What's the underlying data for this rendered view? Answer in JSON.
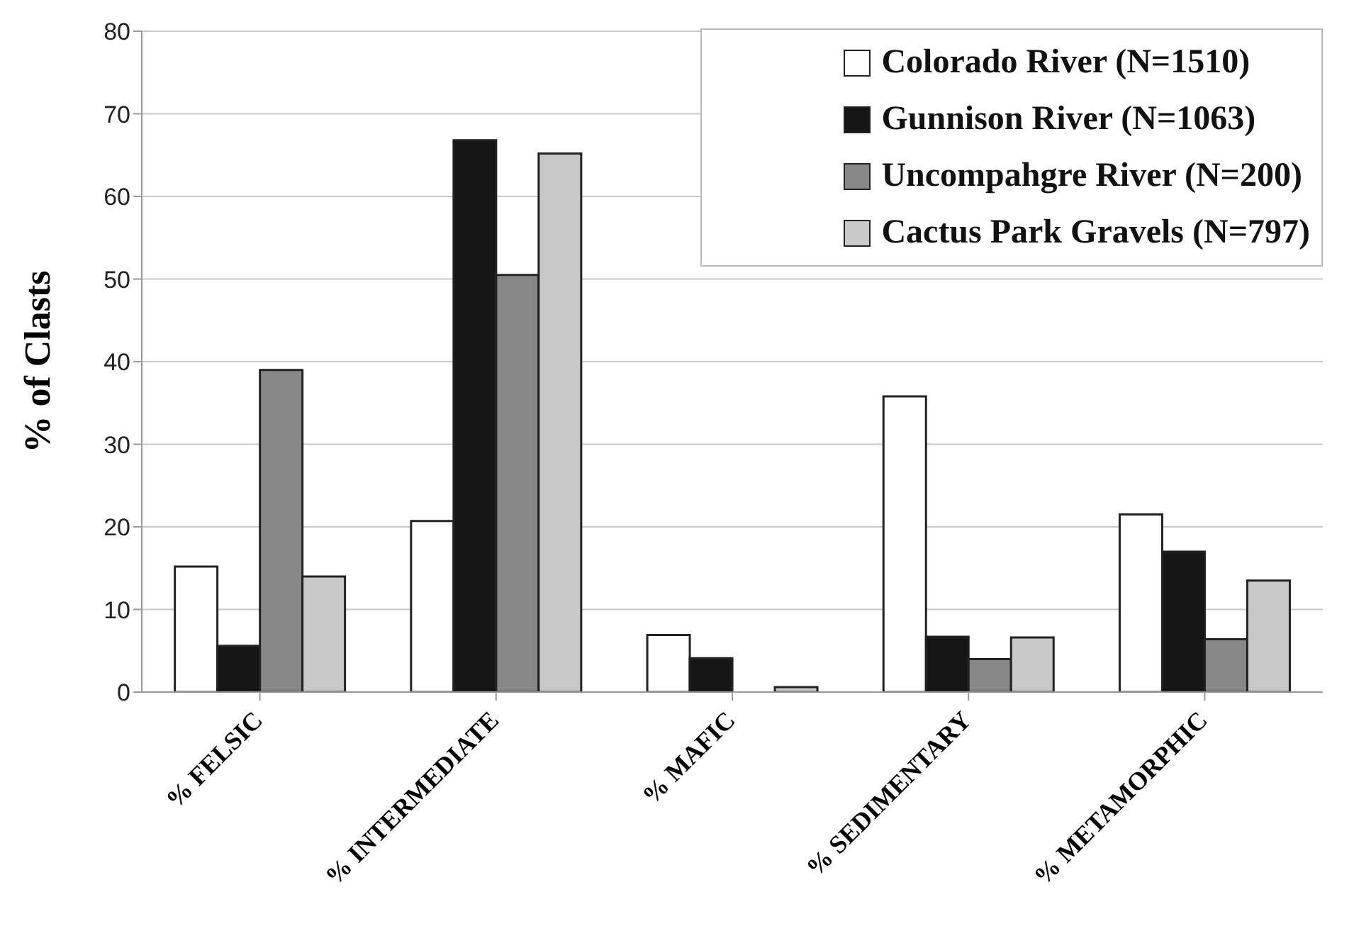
{
  "chart_data": {
    "type": "bar",
    "ylabel": "% of Clasts",
    "categories": [
      "% FELSIC",
      "% INTERMEDIATE",
      "% MAFIC",
      "% SEDIMENTARY",
      "% METAMORPHIC"
    ],
    "series": [
      {
        "name": "Colorado River (N=1510)",
        "color": "#ffffff",
        "values": [
          15.2,
          20.7,
          6.9,
          35.8,
          21.5
        ]
      },
      {
        "name": "Gunnison River (N=1063)",
        "color": "#161616",
        "values": [
          5.6,
          66.8,
          4.1,
          6.7,
          17
        ]
      },
      {
        "name": "Uncompahgre River (N=200)",
        "color": "#878787",
        "values": [
          39,
          50.5,
          0,
          4,
          6.4
        ]
      },
      {
        "name": "Cactus Park Gravels (N=797)",
        "color": "#c8c8c8",
        "values": [
          14,
          65.2,
          0.6,
          6.6,
          13.5
        ]
      }
    ],
    "ylim": [
      0,
      80
    ],
    "yticks": [
      0,
      10,
      20,
      30,
      40,
      50,
      60,
      70,
      80
    ],
    "grid": "y",
    "legend": "top right"
  }
}
